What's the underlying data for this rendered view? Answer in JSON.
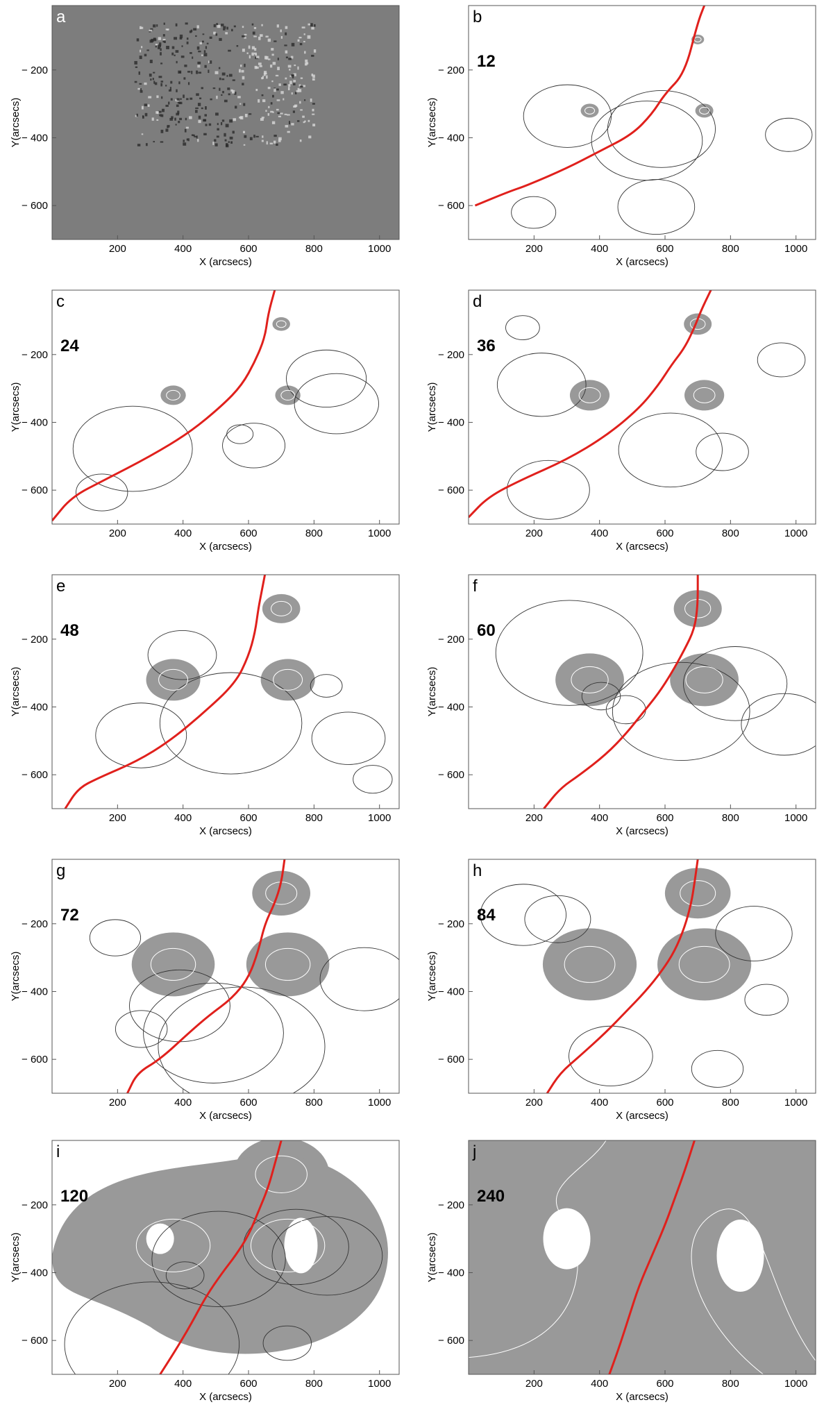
{
  "figure": {
    "panels": [
      {
        "letter": "a",
        "time": "",
        "kind": "magnetogram"
      },
      {
        "letter": "b",
        "time": "12",
        "kind": "contour"
      },
      {
        "letter": "c",
        "time": "24",
        "kind": "contour"
      },
      {
        "letter": "d",
        "time": "36",
        "kind": "contour"
      },
      {
        "letter": "e",
        "time": "48",
        "kind": "contour"
      },
      {
        "letter": "f",
        "time": "60",
        "kind": "contour"
      },
      {
        "letter": "g",
        "time": "72",
        "kind": "contour"
      },
      {
        "letter": "h",
        "time": "84",
        "kind": "contour"
      },
      {
        "letter": "i",
        "time": "120",
        "kind": "contour"
      },
      {
        "letter": "j",
        "time": "240",
        "kind": "contour"
      }
    ]
  },
  "chart_data": {
    "type": "contour",
    "xlabel": "X (arcsecs)",
    "ylabel": "Y(arcsecs)",
    "xlim": [
      0,
      1060
    ],
    "ylim": [
      -700,
      -10
    ],
    "xticks": [
      200,
      400,
      600,
      800,
      1000
    ],
    "yticks": [
      -200,
      -400,
      -600
    ],
    "contour_levels": [
      "0.5",
      "1",
      "1.5"
    ],
    "polarity_inversion_line_color": "#e0201c",
    "shade_color": "#999999",
    "panels": [
      {
        "letter": "a",
        "time": "",
        "type": "magnetogram image"
      },
      {
        "letter": "b",
        "time": "12",
        "pil": [
          [
            20,
            -600
          ],
          [
            120,
            -560
          ],
          [
            180,
            -540
          ],
          [
            300,
            -490
          ],
          [
            400,
            -440
          ],
          [
            500,
            -390
          ],
          [
            560,
            -330
          ],
          [
            600,
            -270
          ],
          [
            660,
            -210
          ],
          [
            700,
            -60
          ],
          [
            720,
            -10
          ]
        ]
      },
      {
        "letter": "c",
        "time": "24",
        "pil": [
          [
            0,
            -690
          ],
          [
            60,
            -620
          ],
          [
            160,
            -570
          ],
          [
            300,
            -500
          ],
          [
            420,
            -430
          ],
          [
            520,
            -350
          ],
          [
            580,
            -290
          ],
          [
            620,
            -220
          ],
          [
            650,
            -150
          ],
          [
            660,
            -80
          ],
          [
            680,
            -10
          ]
        ]
      },
      {
        "letter": "d",
        "time": "36",
        "pil": [
          [
            0,
            -680
          ],
          [
            60,
            -620
          ],
          [
            160,
            -570
          ],
          [
            300,
            -510
          ],
          [
            420,
            -440
          ],
          [
            520,
            -360
          ],
          [
            580,
            -290
          ],
          [
            620,
            -230
          ],
          [
            660,
            -180
          ],
          [
            690,
            -120
          ],
          [
            710,
            -70
          ],
          [
            740,
            -10
          ]
        ]
      },
      {
        "letter": "e",
        "time": "48",
        "pil": [
          [
            40,
            -700
          ],
          [
            80,
            -640
          ],
          [
            140,
            -610
          ],
          [
            260,
            -560
          ],
          [
            360,
            -500
          ],
          [
            460,
            -420
          ],
          [
            560,
            -330
          ],
          [
            600,
            -250
          ],
          [
            620,
            -180
          ],
          [
            630,
            -110
          ],
          [
            640,
            -60
          ],
          [
            650,
            -10
          ]
        ]
      },
      {
        "letter": "f",
        "time": "60",
        "pil": [
          [
            230,
            -700
          ],
          [
            280,
            -640
          ],
          [
            340,
            -600
          ],
          [
            420,
            -540
          ],
          [
            480,
            -480
          ],
          [
            530,
            -420
          ],
          [
            580,
            -360
          ],
          [
            620,
            -300
          ],
          [
            660,
            -230
          ],
          [
            690,
            -170
          ],
          [
            700,
            -100
          ],
          [
            700,
            -10
          ]
        ]
      },
      {
        "letter": "g",
        "time": "72",
        "pil": [
          [
            230,
            -700
          ],
          [
            260,
            -640
          ],
          [
            330,
            -600
          ],
          [
            420,
            -520
          ],
          [
            480,
            -470
          ],
          [
            550,
            -420
          ],
          [
            600,
            -360
          ],
          [
            630,
            -280
          ],
          [
            650,
            -200
          ],
          [
            680,
            -140
          ],
          [
            700,
            -80
          ],
          [
            710,
            -10
          ]
        ]
      },
      {
        "letter": "h",
        "time": "84",
        "pil": [
          [
            240,
            -700
          ],
          [
            280,
            -640
          ],
          [
            340,
            -590
          ],
          [
            420,
            -520
          ],
          [
            480,
            -460
          ],
          [
            540,
            -400
          ],
          [
            590,
            -340
          ],
          [
            630,
            -280
          ],
          [
            660,
            -210
          ],
          [
            680,
            -140
          ],
          [
            690,
            -80
          ],
          [
            700,
            -10
          ]
        ]
      },
      {
        "letter": "i",
        "time": "120",
        "pil": [
          [
            330,
            -700
          ],
          [
            370,
            -640
          ],
          [
            420,
            -560
          ],
          [
            470,
            -470
          ],
          [
            520,
            -400
          ],
          [
            560,
            -350
          ],
          [
            600,
            -290
          ],
          [
            630,
            -220
          ],
          [
            660,
            -150
          ],
          [
            680,
            -80
          ],
          [
            700,
            -10
          ]
        ]
      },
      {
        "letter": "j",
        "time": "240",
        "pil": [
          [
            430,
            -700
          ],
          [
            460,
            -620
          ],
          [
            490,
            -530
          ],
          [
            520,
            -440
          ],
          [
            560,
            -350
          ],
          [
            600,
            -260
          ],
          [
            630,
            -180
          ],
          [
            660,
            -100
          ],
          [
            690,
            -10
          ]
        ]
      }
    ]
  }
}
